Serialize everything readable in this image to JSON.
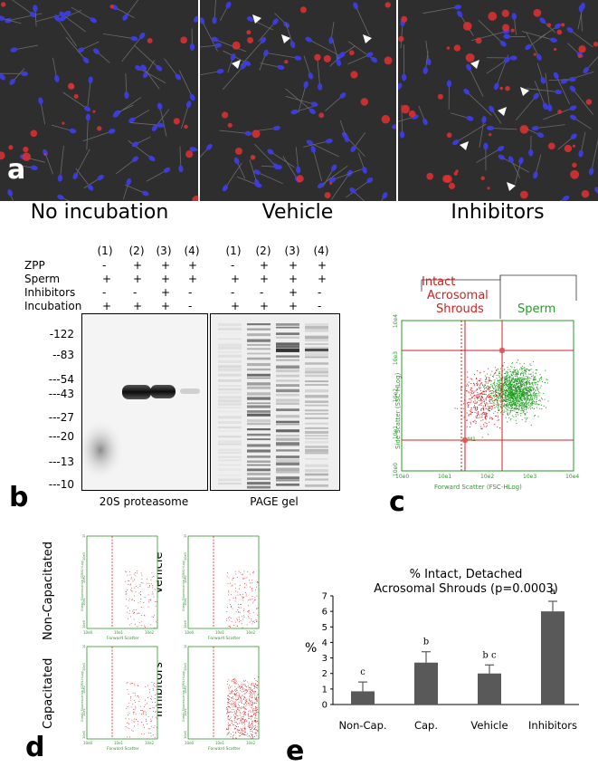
{
  "panel_a": {
    "letter": "a",
    "captions": [
      "No incubation",
      "Vehicle",
      "Inhibitors"
    ]
  },
  "panel_b": {
    "letter": "b",
    "lanes": [
      "(1)",
      "(2)",
      "(3)",
      "(4)"
    ],
    "row_labels": [
      "ZPP",
      "Sperm",
      "Inhibitors",
      "Incubation"
    ],
    "row_values": [
      [
        "-",
        "+",
        "+",
        "+"
      ],
      [
        "+",
        "+",
        "+",
        "+"
      ],
      [
        "-",
        "-",
        "+",
        "-"
      ],
      [
        "+",
        "+",
        "+",
        "-"
      ]
    ],
    "mw_markers": [
      "-122",
      "--83",
      "---54",
      "---43",
      "---27",
      "---20",
      "---13",
      "---10"
    ],
    "blot_title": "20S proteasome",
    "gel_title": "PAGE gel"
  },
  "panel_c": {
    "letter": "c",
    "gate_left_label_1": "Intact",
    "gate_left_label_2": "Acrosomal",
    "gate_left_label_3": "Shrouds",
    "gate_right_label": "Sperm",
    "x_axis_label": "Forward Scatter (FSC-HLog)",
    "y_axis_label": "Side Scatter (SSC-HLog)",
    "x_ticks": [
      "10e0",
      "10e1",
      "10e2",
      "10e3",
      "10e4"
    ],
    "y_ticks": [
      "10e0",
      "10e1",
      "10e2",
      "10e3",
      "10e4"
    ],
    "marker": "M1"
  },
  "panel_d": {
    "letter": "d",
    "plots": [
      {
        "label": "Non-Capacitated"
      },
      {
        "label": "Vehicle"
      },
      {
        "label": "Capacitated"
      },
      {
        "label": "Inhibitors"
      }
    ],
    "x_axis_label": "Forward Scatter",
    "y_axis_label": "Green Fluorescence (GRN-HLog)",
    "x_ticks": [
      "10e0",
      "10e1",
      "10e2"
    ],
    "y_ticks": [
      "10e0",
      "10e1",
      "10e2",
      "10e3",
      "10e4"
    ]
  },
  "panel_e": {
    "letter": "e"
  },
  "chart_data": {
    "type": "bar",
    "title": "% Intact, Detached Acrosomal Shrouds (p=0.0003)",
    "title_line1": "% Intact, Detached",
    "title_line2": "Acrosomal Shrouds (p=0.0003)",
    "ylabel": "%",
    "xlabel": "",
    "categories": [
      "Non-Cap.",
      "Cap.",
      "Vehicle",
      "Inhibitors"
    ],
    "values": [
      0.85,
      2.7,
      2.0,
      6.0
    ],
    "errors": [
      0.6,
      0.7,
      0.55,
      0.65
    ],
    "significance": [
      "c",
      "b",
      "b c",
      "a"
    ],
    "ylim": [
      0,
      7
    ],
    "yticks": [
      "0",
      "1",
      "2",
      "3",
      "4",
      "5",
      "6",
      "7"
    ],
    "bar_color": "#595959"
  }
}
